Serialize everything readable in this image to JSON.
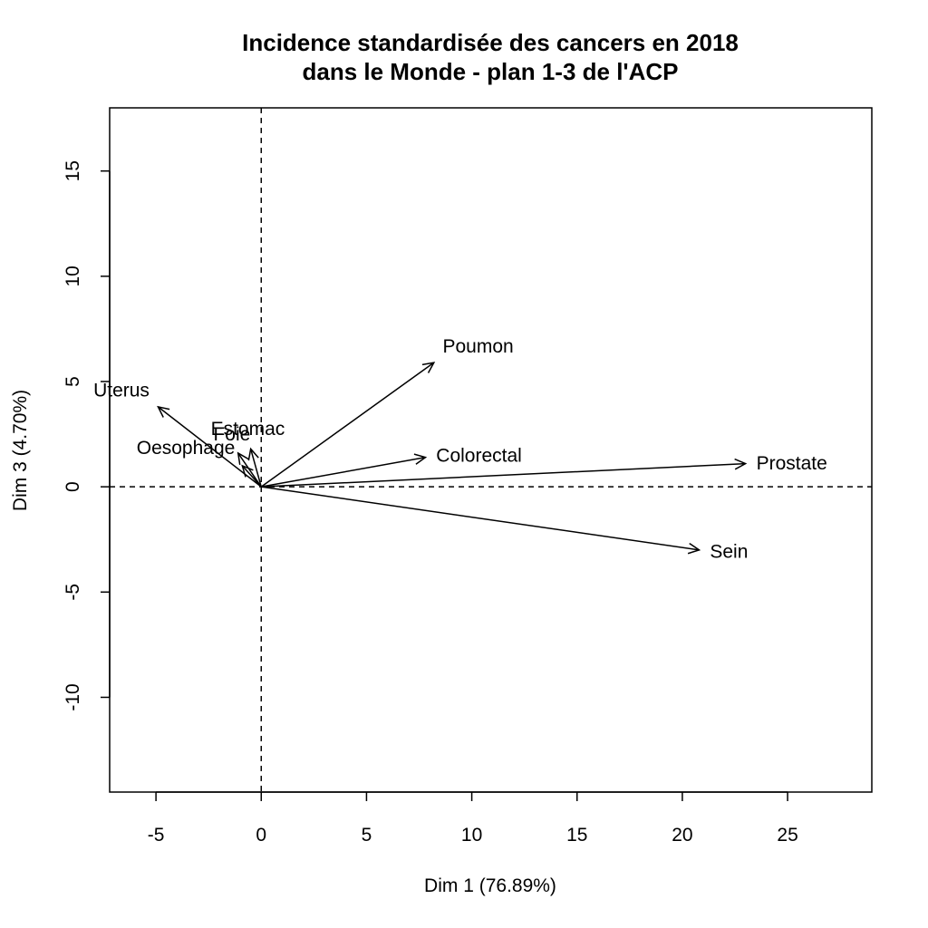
{
  "chart_data": {
    "type": "scatter",
    "subtype": "pca-variable-arrows",
    "title": [
      "Incidence standardisée des cancers en 2018",
      "dans le Monde - plan 1-3 de l'ACP"
    ],
    "xlabel": "Dim 1 (76.89%)",
    "ylabel": "Dim 3 (4.70%)",
    "xlim": [
      -7.2,
      29
    ],
    "ylim": [
      -14.5,
      18
    ],
    "xticks": [
      -5,
      0,
      5,
      10,
      15,
      20,
      25
    ],
    "yticks": [
      -10,
      -5,
      0,
      5,
      10,
      15
    ],
    "xtick_labels": [
      "-5",
      "0",
      "5",
      "10",
      "15",
      "20",
      "25"
    ],
    "ytick_labels": [
      "-10",
      "-5",
      "0",
      "5",
      "10",
      "15"
    ],
    "reference_lines": {
      "x": 0,
      "y": 0,
      "style": "dashed"
    },
    "grid": false,
    "legend": "none",
    "arrows": [
      {
        "label": "Poumon",
        "x": 8.2,
        "y": 5.9
      },
      {
        "label": "Uterus",
        "x": -4.9,
        "y": 3.8
      },
      {
        "label": "Foie",
        "x": -1.1,
        "y": 1.6
      },
      {
        "label": "Estomac",
        "x": -0.5,
        "y": 1.8
      },
      {
        "label": "Oesophage",
        "x": -0.9,
        "y": 1.0
      },
      {
        "label": "Colorectal",
        "x": 7.8,
        "y": 1.4
      },
      {
        "label": "Prostate",
        "x": 23.0,
        "y": 1.1
      },
      {
        "label": "Sein",
        "x": 20.8,
        "y": -3.0
      }
    ]
  }
}
